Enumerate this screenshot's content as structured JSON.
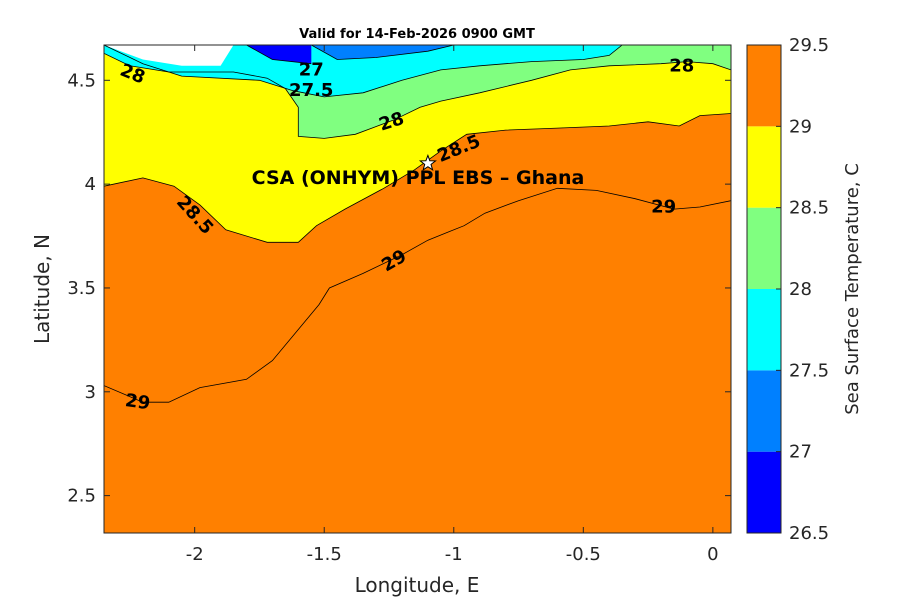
{
  "chart_data": {
    "type": "contourf",
    "title": "Valid for 14-Feb-2026 0900 GMT",
    "xlabel": "Longitude, E",
    "ylabel": "Latitude, N",
    "xlim": [
      -2.35,
      0.07
    ],
    "ylim": [
      2.32,
      4.67
    ],
    "x_ticks": [
      -2,
      -1.5,
      -1,
      -0.5,
      0
    ],
    "x_tick_labels": [
      "-2",
      "-1.5",
      "-1",
      "-0.5",
      "0"
    ],
    "y_ticks": [
      2.5,
      3,
      3.5,
      4,
      4.5
    ],
    "y_tick_labels": [
      "2.5",
      "3",
      "3.5",
      "4",
      "4.5"
    ],
    "colorbar": {
      "label": "Sea Surface Temperature, C",
      "levels": [
        26.5,
        27,
        27.5,
        28,
        28.5,
        29,
        29.5
      ],
      "tick_labels": [
        "26.5",
        "27",
        "27.5",
        "28",
        "28.5",
        "29",
        "29.5"
      ],
      "colors": [
        "#0000ff",
        "#0080ff",
        "#00ffff",
        "#80ff80",
        "#ffff00",
        "#ff8000"
      ]
    },
    "contours": [
      {
        "level": 29,
        "band_above_color": "#ff8000",
        "line": [
          [
            -2.35,
            3.03
          ],
          [
            -2.2,
            2.95
          ],
          [
            -2.1,
            2.95
          ],
          [
            -1.98,
            3.02
          ],
          [
            -1.8,
            3.06
          ],
          [
            -1.7,
            3.15
          ],
          [
            -1.6,
            3.3
          ],
          [
            -1.52,
            3.42
          ],
          [
            -1.48,
            3.5
          ],
          [
            -1.35,
            3.57
          ],
          [
            -1.2,
            3.66
          ],
          [
            -1.1,
            3.73
          ],
          [
            -1.02,
            3.77
          ],
          [
            -0.96,
            3.8
          ],
          [
            -0.88,
            3.86
          ],
          [
            -0.75,
            3.92
          ],
          [
            -0.6,
            3.98
          ],
          [
            -0.45,
            3.97
          ],
          [
            -0.3,
            3.93
          ],
          [
            -0.15,
            3.88
          ],
          [
            -0.05,
            3.89
          ],
          [
            0.07,
            3.92
          ]
        ]
      },
      {
        "level": 28.5,
        "band_above_color": "#ffff00",
        "line": [
          [
            -2.35,
            3.99
          ],
          [
            -2.2,
            4.03
          ],
          [
            -2.08,
            3.99
          ],
          [
            -1.98,
            3.9
          ],
          [
            -1.88,
            3.78
          ],
          [
            -1.72,
            3.72
          ],
          [
            -1.6,
            3.72
          ],
          [
            -1.53,
            3.8
          ],
          [
            -1.42,
            3.88
          ],
          [
            -1.27,
            3.98
          ],
          [
            -1.15,
            4.07
          ],
          [
            -1.05,
            4.16
          ],
          [
            -0.95,
            4.24
          ],
          [
            -0.8,
            4.26
          ],
          [
            -0.6,
            4.27
          ],
          [
            -0.4,
            4.28
          ],
          [
            -0.25,
            4.3
          ],
          [
            -0.13,
            4.28
          ],
          [
            -0.05,
            4.33
          ],
          [
            0.07,
            4.34
          ]
        ]
      },
      {
        "level": 28,
        "band_above_color": "#80ff80",
        "line": [
          [
            -1.65,
            4.46
          ],
          [
            -1.6,
            4.37
          ],
          [
            -1.6,
            4.23
          ],
          [
            -1.5,
            4.22
          ],
          [
            -1.38,
            4.24
          ],
          [
            -1.23,
            4.31
          ],
          [
            -1.13,
            4.37
          ],
          [
            -1.05,
            4.4
          ],
          [
            -0.9,
            4.44
          ],
          [
            -0.7,
            4.5
          ],
          [
            -0.55,
            4.55
          ],
          [
            -0.4,
            4.57
          ],
          [
            -0.2,
            4.58
          ],
          [
            -0.1,
            4.59
          ],
          [
            0.0,
            4.58
          ],
          [
            0.07,
            4.55
          ]
        ]
      },
      {
        "level": 28,
        "band_above_color": "#00ffff",
        "line": [
          [
            -2.35,
            4.63
          ],
          [
            -2.25,
            4.57
          ],
          [
            -2.1,
            4.54
          ],
          [
            -1.85,
            4.54
          ],
          [
            -1.72,
            4.51
          ],
          [
            -1.65,
            4.46
          ]
        ]
      },
      {
        "level": 27.5,
        "band_above_color": "#00ffff",
        "line": [
          [
            -2.35,
            4.67
          ],
          [
            -2.2,
            4.58
          ],
          [
            -2.05,
            4.52
          ],
          [
            -1.75,
            4.5
          ],
          [
            -1.62,
            4.45
          ],
          [
            -1.5,
            4.42
          ],
          [
            -1.35,
            4.44
          ],
          [
            -1.2,
            4.5
          ],
          [
            -1.05,
            4.55
          ],
          [
            -0.9,
            4.57
          ],
          [
            -0.7,
            4.59
          ],
          [
            -0.5,
            4.6
          ],
          [
            -0.4,
            4.62
          ],
          [
            -0.35,
            4.67
          ]
        ]
      },
      {
        "level": 27,
        "band_above_color": "#0080ff",
        "line": [
          [
            -1.55,
            4.67
          ],
          [
            -1.45,
            4.6
          ],
          [
            -1.3,
            4.61
          ],
          [
            -1.1,
            4.64
          ],
          [
            -1.0,
            4.67
          ]
        ]
      },
      {
        "level": 26.5,
        "band_above_color": "#0000ff",
        "line": [
          [
            -1.8,
            4.67
          ],
          [
            -1.7,
            4.6
          ],
          [
            -1.55,
            4.58
          ]
        ]
      }
    ],
    "missing_data_region": [
      [
        -2.35,
        4.67
      ],
      [
        -2.2,
        4.6
      ],
      [
        -2.05,
        4.57
      ],
      [
        -1.9,
        4.57
      ],
      [
        -1.85,
        4.67
      ]
    ],
    "contour_labels": [
      {
        "text": "28",
        "x": -2.24,
        "y": 4.53,
        "rotation": 22
      },
      {
        "text": "27",
        "x": -1.55,
        "y": 4.55,
        "rotation": 0
      },
      {
        "text": "27.5",
        "x": -1.55,
        "y": 4.45,
        "rotation": 0
      },
      {
        "text": "28",
        "x": -1.24,
        "y": 4.3,
        "rotation": -18
      },
      {
        "text": "28.5",
        "x": -0.98,
        "y": 4.17,
        "rotation": -22
      },
      {
        "text": "28.5",
        "x": -2.0,
        "y": 3.85,
        "rotation": 48
      },
      {
        "text": "29",
        "x": -1.23,
        "y": 3.63,
        "rotation": -30
      },
      {
        "text": "29",
        "x": -0.19,
        "y": 3.89,
        "rotation": 0
      },
      {
        "text": "29",
        "x": -2.22,
        "y": 2.95,
        "rotation": 8
      },
      {
        "text": "28",
        "x": -0.12,
        "y": 4.57,
        "rotation": 0
      }
    ],
    "site_marker": {
      "label": "CSA (ONHYM) PPL EBS  – Ghana",
      "x": -1.1,
      "y": 4.1,
      "label_x": -1.78,
      "label_y": 4.0
    }
  }
}
